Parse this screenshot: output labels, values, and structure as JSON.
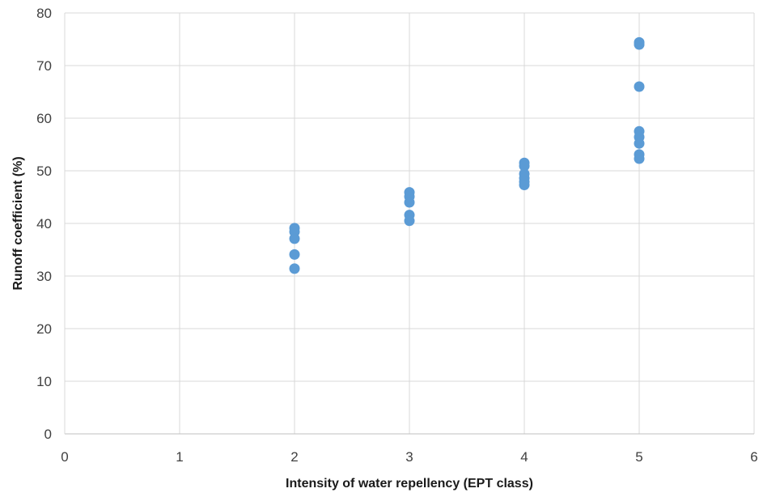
{
  "chart_data": {
    "type": "scatter",
    "title": "",
    "xlabel": "Intensity of water repellency (EPT class)",
    "ylabel": "Runoff coefficient (%)",
    "xlim": [
      0,
      6
    ],
    "ylim": [
      0,
      80
    ],
    "x_ticks": [
      "0",
      "1",
      "2",
      "3",
      "4",
      "5",
      "6"
    ],
    "y_ticks": [
      "0",
      "10",
      "20",
      "30",
      "40",
      "50",
      "60",
      "70",
      "80"
    ],
    "grid": true,
    "legend": "none",
    "series": [
      {
        "color": "#5b9bd5",
        "points": [
          {
            "x": 2,
            "y": 39.1
          },
          {
            "x": 2,
            "y": 38.4
          },
          {
            "x": 2,
            "y": 37.1
          },
          {
            "x": 2,
            "y": 34.1
          },
          {
            "x": 2,
            "y": 31.4
          },
          {
            "x": 3,
            "y": 45.9
          },
          {
            "x": 3,
            "y": 45.1
          },
          {
            "x": 3,
            "y": 44.0
          },
          {
            "x": 3,
            "y": 41.6
          },
          {
            "x": 3,
            "y": 40.5
          },
          {
            "x": 4,
            "y": 51.5
          },
          {
            "x": 4,
            "y": 50.9
          },
          {
            "x": 4,
            "y": 49.4
          },
          {
            "x": 4,
            "y": 48.6
          },
          {
            "x": 4,
            "y": 47.9
          },
          {
            "x": 4,
            "y": 47.3
          },
          {
            "x": 5,
            "y": 74.4
          },
          {
            "x": 5,
            "y": 74.0
          },
          {
            "x": 5,
            "y": 66.0
          },
          {
            "x": 5,
            "y": 57.5
          },
          {
            "x": 5,
            "y": 56.4
          },
          {
            "x": 5,
            "y": 55.2
          },
          {
            "x": 5,
            "y": 53.1
          },
          {
            "x": 5,
            "y": 52.3
          }
        ]
      }
    ]
  }
}
